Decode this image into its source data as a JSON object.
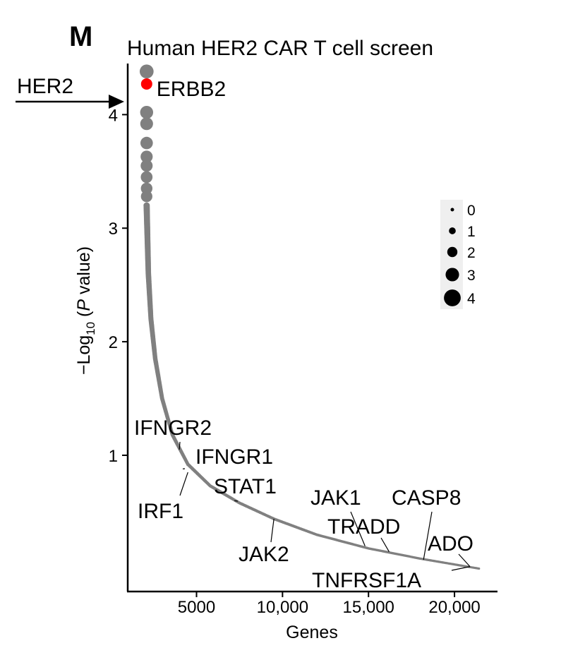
{
  "panel_letter": "M",
  "title": "Human HER2 CAR T cell screen",
  "title_color": "#a82a20",
  "highlight": {
    "label": "HER2",
    "color": "#a82a20",
    "point_color": "#ff0000"
  },
  "point_color": "#808080",
  "chart_data": {
    "type": "scatter",
    "xlabel": "Genes",
    "ylabel": {
      "prefix": "−Log",
      "sub": "10",
      "open": " (",
      "italic": "P",
      "rest": " value)"
    },
    "xlim": [
      1000,
      22500
    ],
    "ylim": [
      -0.2,
      4.45
    ],
    "x_ticks": [
      {
        "value": 5000,
        "label": "5000"
      },
      {
        "value": 10000,
        "label": "10,000"
      },
      {
        "value": 15000,
        "label": "15,000"
      },
      {
        "value": 20000,
        "label": "20,000"
      }
    ],
    "y_ticks": [
      {
        "value": 1,
        "label": "1"
      },
      {
        "value": 2,
        "label": "2"
      },
      {
        "value": 3,
        "label": "3"
      },
      {
        "value": 4,
        "label": "4"
      }
    ],
    "top_points": [
      {
        "x": 2100,
        "y": 4.38,
        "size": 4.4
      },
      {
        "x": 2100,
        "y": 4.02,
        "size": 4.0
      },
      {
        "x": 2100,
        "y": 3.92,
        "size": 3.9
      },
      {
        "x": 2100,
        "y": 3.75,
        "size": 3.75
      },
      {
        "x": 2100,
        "y": 3.63,
        "size": 3.6
      },
      {
        "x": 2100,
        "y": 3.55,
        "size": 3.55
      },
      {
        "x": 2100,
        "y": 3.45,
        "size": 3.45
      },
      {
        "x": 2100,
        "y": 3.35,
        "size": 3.35
      },
      {
        "x": 2100,
        "y": 3.28,
        "size": 3.3
      }
    ],
    "curve": [
      {
        "x": 2100,
        "y": 3.2
      },
      {
        "x": 2200,
        "y": 2.6
      },
      {
        "x": 2350,
        "y": 2.2
      },
      {
        "x": 2600,
        "y": 1.85
      },
      {
        "x": 3000,
        "y": 1.5
      },
      {
        "x": 3600,
        "y": 1.18
      },
      {
        "x": 4500,
        "y": 0.92
      },
      {
        "x": 5800,
        "y": 0.73
      },
      {
        "x": 7500,
        "y": 0.58
      },
      {
        "x": 9500,
        "y": 0.44
      },
      {
        "x": 12000,
        "y": 0.3
      },
      {
        "x": 15000,
        "y": 0.18
      },
      {
        "x": 18000,
        "y": 0.09
      },
      {
        "x": 21500,
        "y": 0.0
      }
    ],
    "highlighted_point": {
      "gene": "ERBB2",
      "x": 2100,
      "y": 4.27
    },
    "legend": {
      "title": "",
      "placement": "right",
      "entries": [
        {
          "label": "0",
          "size": 0
        },
        {
          "label": "1",
          "size": 1
        },
        {
          "label": "2",
          "size": 2
        },
        {
          "label": "3",
          "size": 3
        },
        {
          "label": "4",
          "size": 4
        }
      ]
    },
    "gene_labels": [
      {
        "gene": "IFNGR2",
        "x": 4000,
        "y": 1.05
      },
      {
        "gene": "IFNGR1",
        "x": 4200,
        "y": 0.88
      },
      {
        "gene": "IRF1",
        "x": 4500,
        "y": 0.85
      },
      {
        "gene": "STAT1",
        "x": 7200,
        "y": 0.6
      },
      {
        "gene": "JAK2",
        "x": 9500,
        "y": 0.44
      },
      {
        "gene": "JAK1",
        "x": 14800,
        "y": 0.2
      },
      {
        "gene": "TRADD",
        "x": 16200,
        "y": 0.15
      },
      {
        "gene": "CASP8",
        "x": 18200,
        "y": 0.08
      },
      {
        "gene": "ADO",
        "x": 20900,
        "y": 0.02
      },
      {
        "gene": "TNFRSF1A",
        "x": 20900,
        "y": 0.02
      }
    ]
  }
}
